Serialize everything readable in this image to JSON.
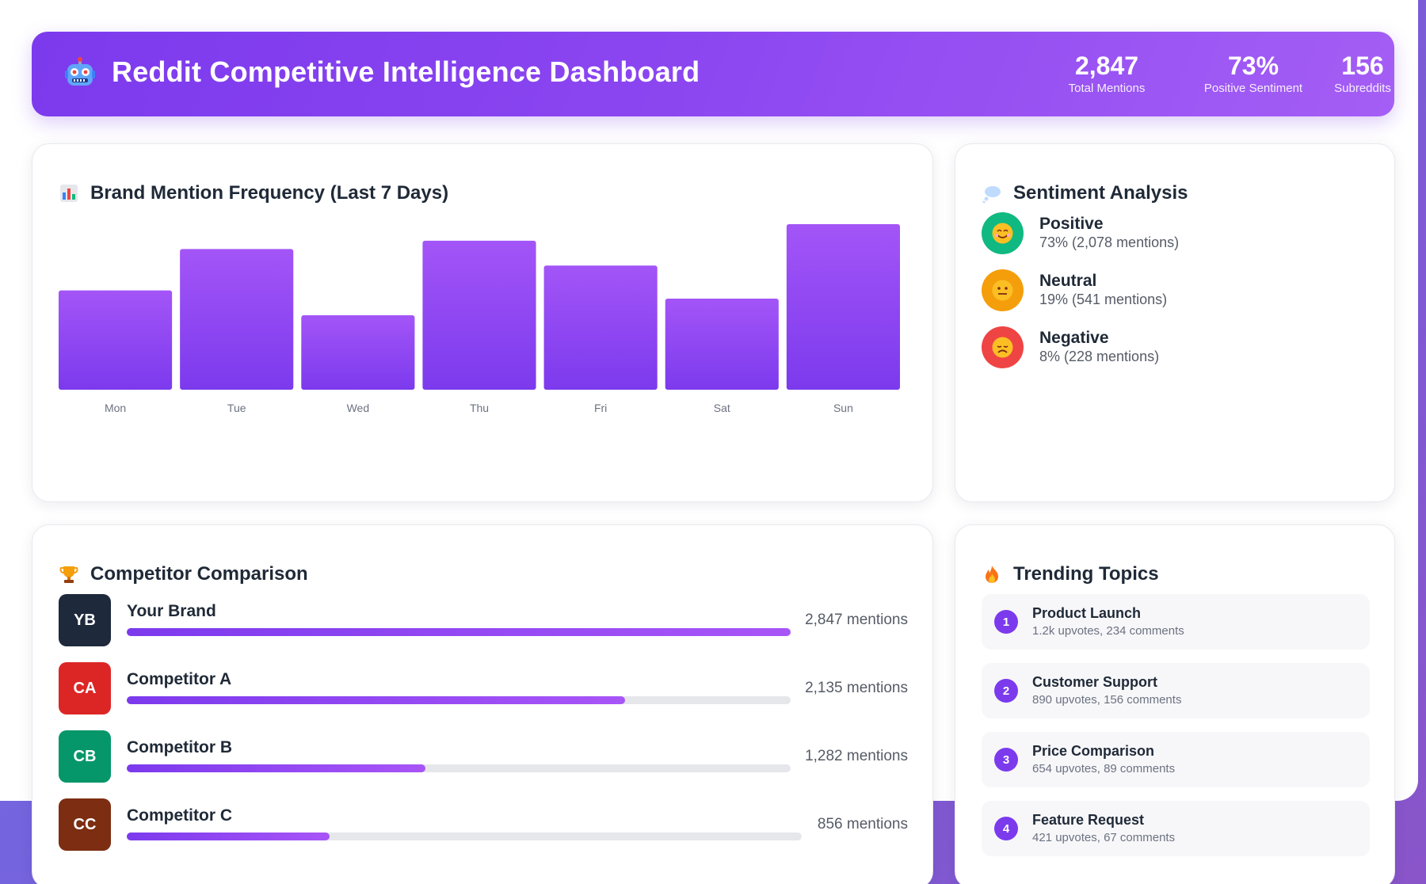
{
  "header": {
    "icon": "robot-icon",
    "title": "Reddit Competitive Intelligence Dashboard",
    "stats": [
      {
        "value": "2,847",
        "label": "Total Mentions"
      },
      {
        "value": "73%",
        "label": "Positive Sentiment"
      },
      {
        "value": "156",
        "label": "Subreddits"
      }
    ]
  },
  "mention_chart": {
    "icon": "bar-chart-icon",
    "title": "Brand Mention Frequency (Last 7 Days)"
  },
  "chart_data": {
    "type": "bar",
    "title": "Brand Mention Frequency (Last 7 Days)",
    "categories": [
      "Mon",
      "Tue",
      "Wed",
      "Thu",
      "Fri",
      "Sat",
      "Sun"
    ],
    "values": [
      60,
      85,
      45,
      90,
      75,
      55,
      100
    ],
    "ylim": [
      0,
      100
    ],
    "grid": false,
    "colors": {
      "top": "#a355f7",
      "bottom": "#7c3aed"
    }
  },
  "sentiment": {
    "icon": "thought-bubble-icon",
    "title": "Sentiment Analysis",
    "items": [
      {
        "name": "Positive",
        "detail": "73% (2,078 mentions)",
        "color": "#10b981",
        "icon": "smile-face-icon"
      },
      {
        "name": "Neutral",
        "detail": "19% (541 mentions)",
        "color": "#f59e0b",
        "icon": "neutral-face-icon"
      },
      {
        "name": "Negative",
        "detail": "8% (228 mentions)",
        "color": "#ef4444",
        "icon": "frown-face-icon"
      }
    ]
  },
  "competitors": {
    "icon": "trophy-icon",
    "title": "Competitor Comparison",
    "items": [
      {
        "initials": "YB",
        "name": "Your Brand",
        "count_label": "2,847 mentions",
        "share": 1.0,
        "color": "#1e293b"
      },
      {
        "initials": "CA",
        "name": "Competitor A",
        "count_label": "2,135 mentions",
        "share": 0.75,
        "color": "#dc2626"
      },
      {
        "initials": "CB",
        "name": "Competitor B",
        "count_label": "1,282 mentions",
        "share": 0.45,
        "color": "#059669"
      },
      {
        "initials": "CC",
        "name": "Competitor C",
        "count_label": "856 mentions",
        "share": 0.3,
        "color": "#7c2d12"
      }
    ]
  },
  "trending": {
    "icon": "fire-icon",
    "title": "Trending Topics",
    "items": [
      {
        "rank": "1",
        "title": "Product Launch",
        "meta": "1.2k upvotes, 234 comments"
      },
      {
        "rank": "2",
        "title": "Customer Support",
        "meta": "890 upvotes, 156 comments"
      },
      {
        "rank": "3",
        "title": "Price Comparison",
        "meta": "654 upvotes, 89 comments"
      },
      {
        "rank": "4",
        "title": "Feature Request",
        "meta": "421 upvotes, 67 comments"
      }
    ]
  }
}
